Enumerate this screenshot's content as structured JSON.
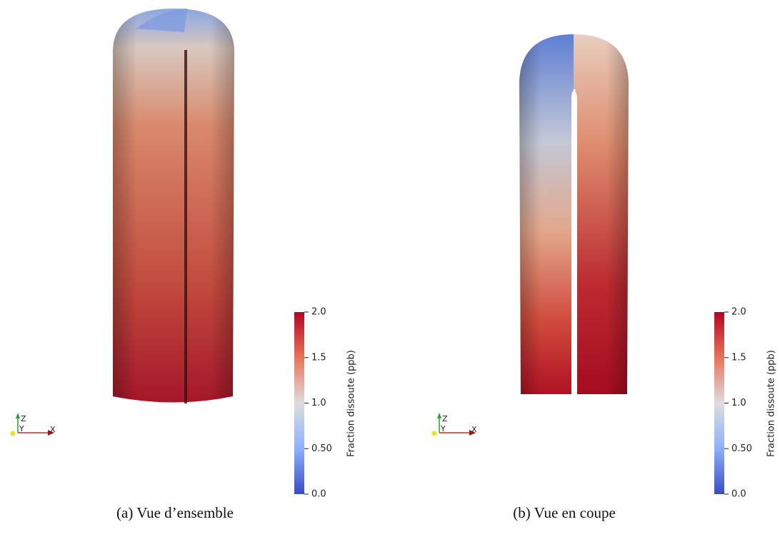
{
  "panels": [
    {
      "caption": "(a) Vue d’ensemble",
      "colorbar": {
        "title": "Fraction dissoute (ppb)",
        "ticks": [
          "2.0",
          "1.5",
          "1.0",
          "0.50",
          "0.0"
        ]
      },
      "axes": {
        "x": "X",
        "y": "Y",
        "z": "Z"
      }
    },
    {
      "caption": "(b) Vue en coupe",
      "colorbar": {
        "title": "Fraction dissoute (ppb)",
        "ticks": [
          "2.0",
          "1.5",
          "1.0",
          "0.50",
          "0.0"
        ]
      },
      "axes": {
        "x": "X",
        "y": "Y",
        "z": "Z"
      }
    }
  ]
}
